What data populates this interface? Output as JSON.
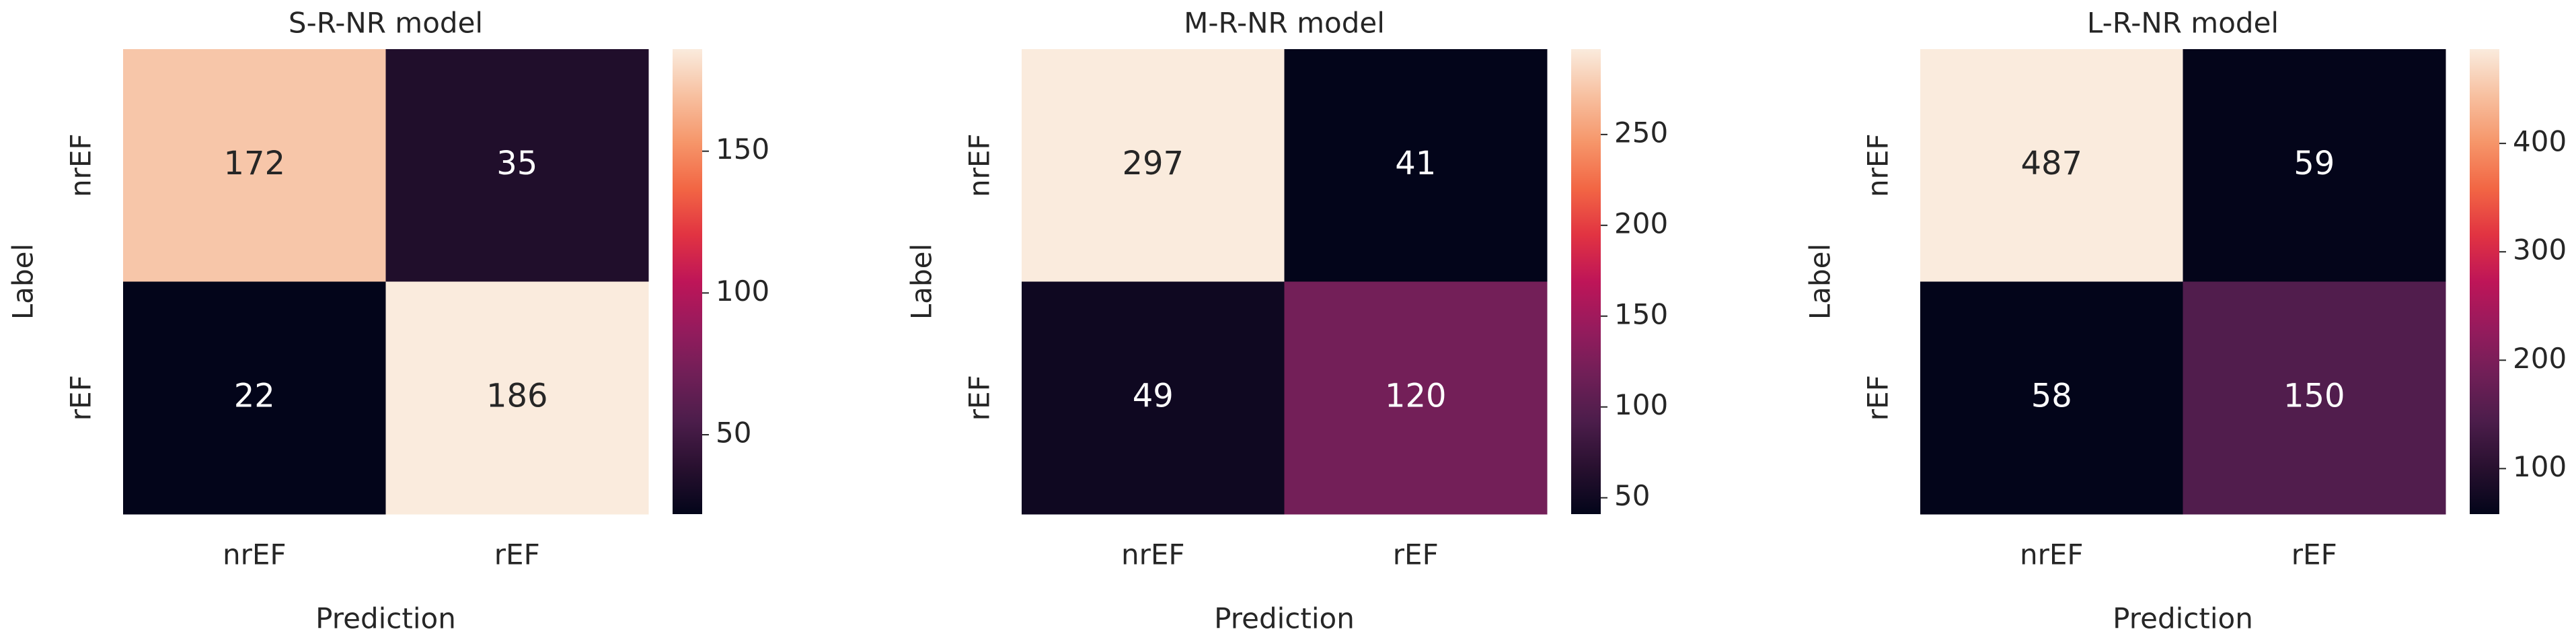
{
  "chart_data": [
    {
      "type": "heatmap",
      "title": "S-R-NR model",
      "x_label": "Prediction",
      "y_label": "Label",
      "x_categories": [
        "nrEF",
        "rEF"
      ],
      "y_categories": [
        "nrEF",
        "rEF"
      ],
      "values": [
        [
          172,
          35
        ],
        [
          22,
          186
        ]
      ],
      "colormap": "rocket",
      "zlim": [
        22,
        186
      ],
      "zticks": [
        50,
        100,
        150
      ]
    },
    {
      "type": "heatmap",
      "title": "M-R-NR model",
      "x_label": "Prediction",
      "y_label": "Label",
      "x_categories": [
        "nrEF",
        "rEF"
      ],
      "y_categories": [
        "nrEF",
        "rEF"
      ],
      "values": [
        [
          297,
          41
        ],
        [
          49,
          120
        ]
      ],
      "colormap": "rocket",
      "zlim": [
        41,
        297
      ],
      "zticks": [
        50,
        100,
        150,
        200,
        250
      ]
    },
    {
      "type": "heatmap",
      "title": "L-R-NR model",
      "x_label": "Prediction",
      "y_label": "Label",
      "x_categories": [
        "nrEF",
        "rEF"
      ],
      "y_categories": [
        "nrEF",
        "rEF"
      ],
      "values": [
        [
          487,
          59
        ],
        [
          58,
          150
        ]
      ],
      "colormap": "rocket",
      "zlim": [
        58,
        487
      ],
      "zticks": [
        100,
        200,
        300,
        400
      ]
    }
  ]
}
